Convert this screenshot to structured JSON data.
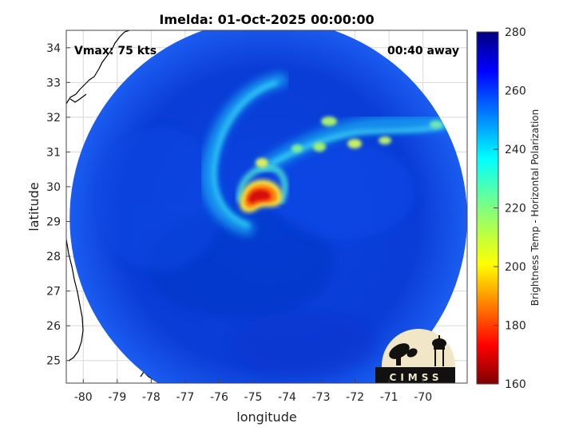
{
  "title": "Imelda: 01-Oct-2025 00:00:00",
  "annotations": {
    "vmax": "Vmax: 75 kts",
    "away": "00:40 away"
  },
  "axes": {
    "xlabel": "longitude",
    "ylabel": "latitude",
    "xlim": [
      -80.5,
      -68.7
    ],
    "ylim": [
      24.35,
      34.5
    ],
    "xticks": [
      -80,
      -79,
      -78,
      -77,
      -76,
      -75,
      -74,
      -73,
      -72,
      -71,
      -70
    ],
    "yticks": [
      25,
      26,
      27,
      28,
      29,
      30,
      31,
      32,
      33,
      34
    ],
    "grid": true
  },
  "colorbar": {
    "label": "Brightness Temp - Horizontal Polarization",
    "min": 160,
    "max": 280,
    "ticks": [
      160,
      180,
      200,
      220,
      240,
      260,
      280
    ],
    "colormap": "jet"
  },
  "swath": {
    "center_lon": -74.55,
    "center_lat": 29.1,
    "radius_deg": 5.85
  },
  "storm": {
    "center_lon": -75.05,
    "center_lat": 29.6,
    "min_tb": 175
  },
  "logo": {
    "text": "CIMSS"
  },
  "colors": {
    "background_ocean": "#0a3fd8",
    "coast": "#000000",
    "grid": "#d8d8d8"
  }
}
